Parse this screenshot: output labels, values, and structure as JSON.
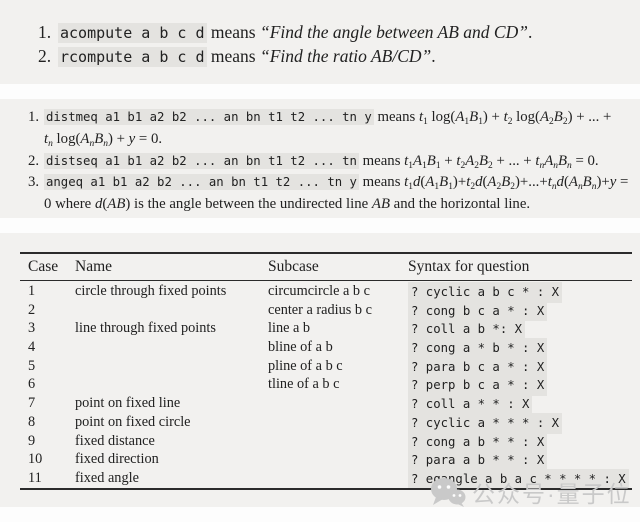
{
  "colors": {
    "page_bg": "#fdfdfd",
    "panel_bg": "#f2f1ef",
    "code_highlight": "#e4e3e0",
    "text": "#212121",
    "rule": "#2b2b2b",
    "watermark": "#c9c9c9"
  },
  "panel1": {
    "items": [
      {
        "num": "1.",
        "segs": [
          {
            "s": "c",
            "t": "acompute a b c d"
          },
          {
            "s": "r",
            "t": " means "
          },
          {
            "s": "i",
            "t": "“Find the angle between AB and CD”"
          },
          {
            "s": "r",
            "t": "."
          }
        ]
      },
      {
        "num": "2.",
        "segs": [
          {
            "s": "c",
            "t": "rcompute a b c d"
          },
          {
            "s": "r",
            "t": " means "
          },
          {
            "s": "i",
            "t": "“Find the ratio AB/CD”"
          },
          {
            "s": "r",
            "t": "."
          }
        ]
      }
    ]
  },
  "panel2": {
    "lines": [
      {
        "num": "1.",
        "segs": [
          {
            "s": "c",
            "t": "distmeq a1 b1 a2 b2 ... an bn t1 t2 ... tn y"
          },
          {
            "s": "r",
            "t": " means "
          },
          {
            "s": "i",
            "t": "t"
          },
          {
            "s": "s",
            "t": "1"
          },
          {
            "s": "r",
            "t": " log("
          },
          {
            "s": "i",
            "t": "A"
          },
          {
            "s": "s",
            "t": "1"
          },
          {
            "s": "i",
            "t": "B"
          },
          {
            "s": "s",
            "t": "1"
          },
          {
            "s": "r",
            "t": ") + "
          },
          {
            "s": "i",
            "t": "t"
          },
          {
            "s": "s",
            "t": "2"
          },
          {
            "s": "r",
            "t": " log("
          },
          {
            "s": "i",
            "t": "A"
          },
          {
            "s": "s",
            "t": "2"
          },
          {
            "s": "i",
            "t": "B"
          },
          {
            "s": "s",
            "t": "2"
          },
          {
            "s": "r",
            "t": ") + ... +"
          }
        ]
      },
      {
        "num": "",
        "segs": [
          {
            "s": "i",
            "t": "t"
          },
          {
            "s": "si",
            "t": "n"
          },
          {
            "s": "r",
            "t": " log("
          },
          {
            "s": "i",
            "t": "A"
          },
          {
            "s": "si",
            "t": "n"
          },
          {
            "s": "i",
            "t": "B"
          },
          {
            "s": "si",
            "t": "n"
          },
          {
            "s": "r",
            "t": ") + "
          },
          {
            "s": "i",
            "t": "y"
          },
          {
            "s": "r",
            "t": " = 0."
          }
        ]
      },
      {
        "num": "2.",
        "segs": [
          {
            "s": "c",
            "t": "distseq a1 b1 a2 b2 ... an bn t1 t2 ... tn"
          },
          {
            "s": "r",
            "t": " means "
          },
          {
            "s": "i",
            "t": "t"
          },
          {
            "s": "s",
            "t": "1"
          },
          {
            "s": "i",
            "t": "A"
          },
          {
            "s": "s",
            "t": "1"
          },
          {
            "s": "i",
            "t": "B"
          },
          {
            "s": "s",
            "t": "1"
          },
          {
            "s": "r",
            "t": " + "
          },
          {
            "s": "i",
            "t": "t"
          },
          {
            "s": "s",
            "t": "2"
          },
          {
            "s": "i",
            "t": "A"
          },
          {
            "s": "s",
            "t": "2"
          },
          {
            "s": "i",
            "t": "B"
          },
          {
            "s": "s",
            "t": "2"
          },
          {
            "s": "r",
            "t": " + ... + "
          },
          {
            "s": "i",
            "t": "t"
          },
          {
            "s": "si",
            "t": "n"
          },
          {
            "s": "i",
            "t": "A"
          },
          {
            "s": "si",
            "t": "n"
          },
          {
            "s": "i",
            "t": "B"
          },
          {
            "s": "si",
            "t": "n"
          },
          {
            "s": "r",
            "t": " = 0."
          }
        ]
      },
      {
        "num": "3.",
        "segs": [
          {
            "s": "c",
            "t": "angeq a1 b1 a2 b2 ... an bn t1 t2 ... tn y"
          },
          {
            "s": "r",
            "t": " means "
          },
          {
            "s": "i",
            "t": "t"
          },
          {
            "s": "s",
            "t": "1"
          },
          {
            "s": "i",
            "t": "d"
          },
          {
            "s": "r",
            "t": "("
          },
          {
            "s": "i",
            "t": "A"
          },
          {
            "s": "s",
            "t": "1"
          },
          {
            "s": "i",
            "t": "B"
          },
          {
            "s": "s",
            "t": "1"
          },
          {
            "s": "r",
            "t": ")+"
          },
          {
            "s": "i",
            "t": "t"
          },
          {
            "s": "s",
            "t": "2"
          },
          {
            "s": "i",
            "t": "d"
          },
          {
            "s": "r",
            "t": "("
          },
          {
            "s": "i",
            "t": "A"
          },
          {
            "s": "s",
            "t": "2"
          },
          {
            "s": "i",
            "t": "B"
          },
          {
            "s": "s",
            "t": "2"
          },
          {
            "s": "r",
            "t": ")+...+"
          },
          {
            "s": "i",
            "t": "t"
          },
          {
            "s": "si",
            "t": "n"
          },
          {
            "s": "i",
            "t": "d"
          },
          {
            "s": "r",
            "t": "("
          },
          {
            "s": "i",
            "t": "A"
          },
          {
            "s": "si",
            "t": "n"
          },
          {
            "s": "i",
            "t": "B"
          },
          {
            "s": "si",
            "t": "n"
          },
          {
            "s": "r",
            "t": ")+"
          },
          {
            "s": "i",
            "t": "y"
          },
          {
            "s": "r",
            "t": " ="
          }
        ]
      },
      {
        "num": "",
        "segs": [
          {
            "s": "r",
            "t": "0 where "
          },
          {
            "s": "i",
            "t": "d"
          },
          {
            "s": "r",
            "t": "("
          },
          {
            "s": "i",
            "t": "AB"
          },
          {
            "s": "r",
            "t": ") is the angle between the undirected line "
          },
          {
            "s": "i",
            "t": "AB"
          },
          {
            "s": "r",
            "t": " and the horizontal line."
          }
        ]
      }
    ]
  },
  "table": {
    "columns": [
      "Case",
      "Name",
      "Subcase",
      "Syntax for question"
    ],
    "rows": [
      [
        "1",
        "circle through fixed points",
        "circumcircle a b c",
        "? cyclic a b c * : X"
      ],
      [
        "2",
        "",
        "center a radius b c",
        "? cong b c a * : X"
      ],
      [
        "3",
        "line through fixed points",
        "line a b",
        "? coll a b *: X"
      ],
      [
        "4",
        "",
        "bline of a b",
        "? cong a * b * : X"
      ],
      [
        "5",
        "",
        "pline of a b c",
        "? para b c a * : X"
      ],
      [
        "6",
        "",
        "tline of a b c",
        "? perp b c a * : X"
      ],
      [
        "7",
        "point on fixed line",
        "",
        "? coll a * * : X"
      ],
      [
        "8",
        "point on fixed circle",
        "",
        "? cyclic a * * * : X"
      ],
      [
        "9",
        "fixed distance",
        "",
        "? cong a b * * : X"
      ],
      [
        "10",
        "fixed direction",
        "",
        "? para a b * * : X"
      ],
      [
        "11",
        "fixed angle",
        "",
        "? eqangle a b a c * * * * : X"
      ]
    ]
  },
  "watermark": {
    "icon": "wechat-bubbles-icon",
    "text": "公众号·量子位"
  }
}
